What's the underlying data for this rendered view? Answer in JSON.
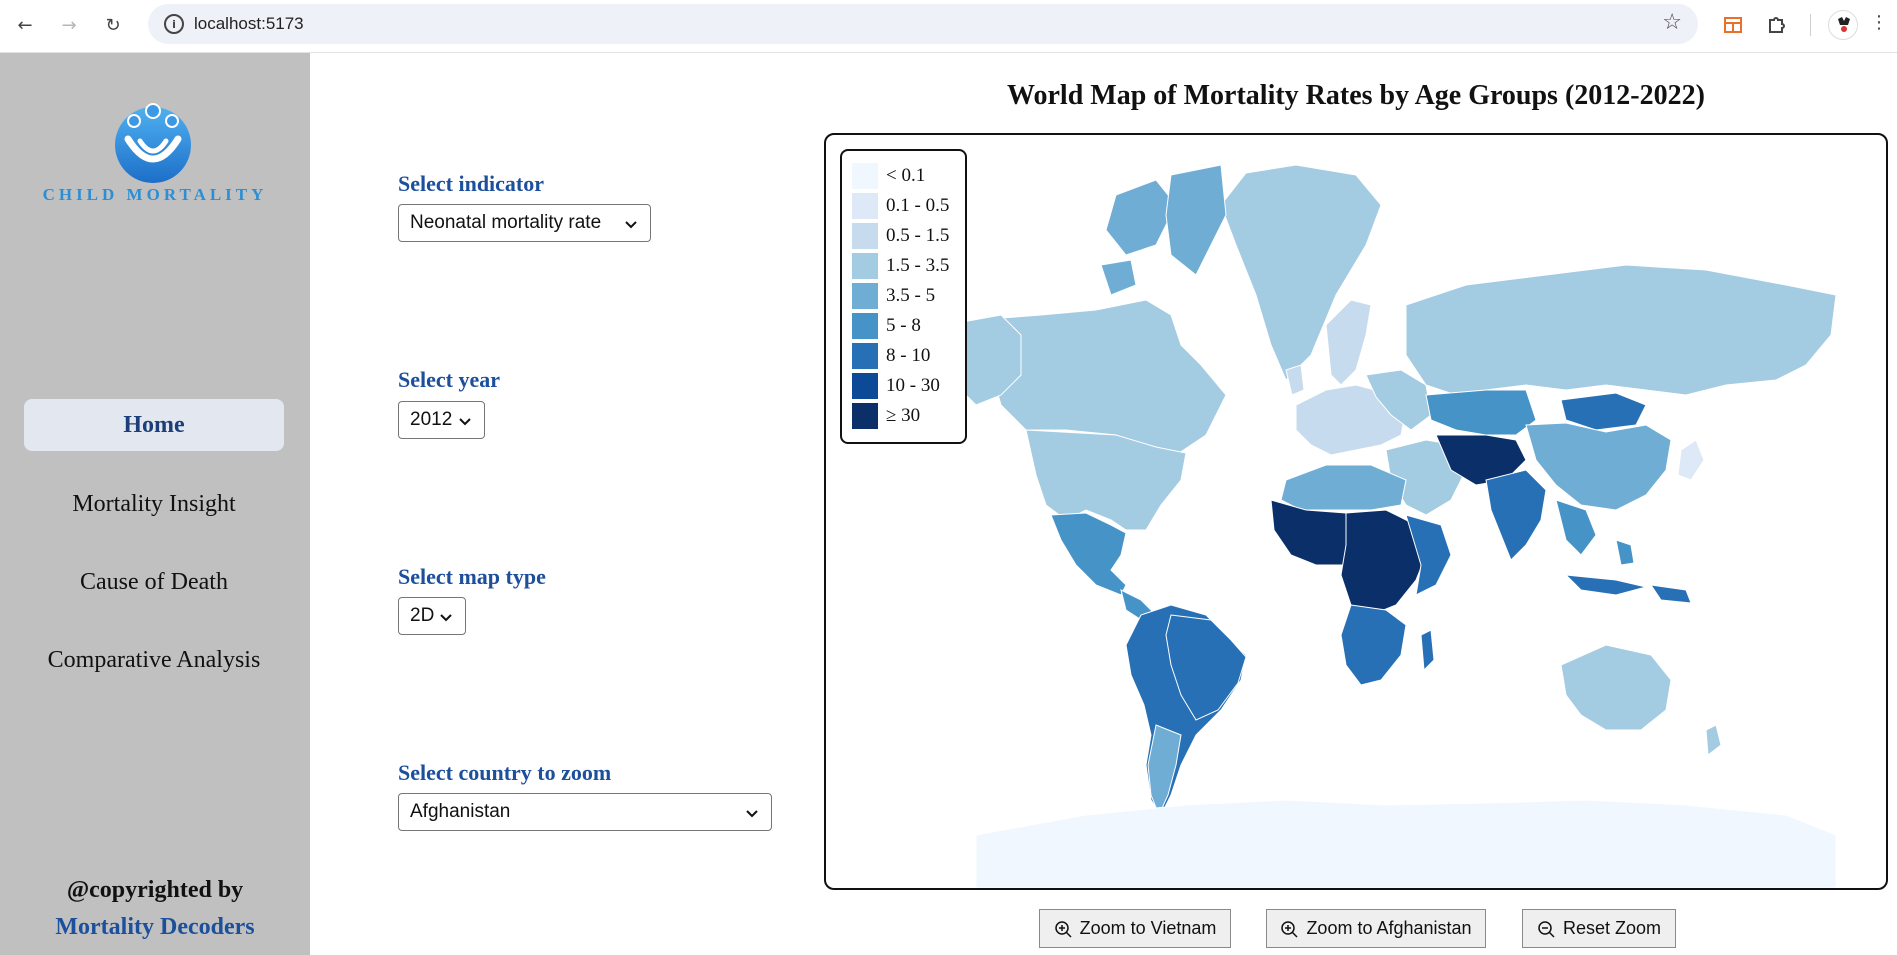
{
  "browser": {
    "url": "localhost:5173",
    "icons": [
      "back-icon",
      "forward-icon",
      "reload-icon",
      "site-info-icon",
      "bookmark-star-icon",
      "extension-icon",
      "puzzle-icon",
      "profile-avatar",
      "menu-icon"
    ]
  },
  "sidebar": {
    "brand": "CHILD MORTALITY",
    "nav": [
      {
        "label": "Home",
        "active": true
      },
      {
        "label": "Mortality Insight",
        "active": false
      },
      {
        "label": "Cause of Death",
        "active": false
      },
      {
        "label": "Comparative Analysis",
        "active": false
      }
    ],
    "footer_line1": "@copyrighted by",
    "footer_line2": "Mortality Decoders"
  },
  "controls": {
    "indicator": {
      "label": "Select indicator",
      "value": "Neonatal mortality rate"
    },
    "year": {
      "label": "Select year",
      "value": "2012"
    },
    "map_type": {
      "label": "Select map type",
      "value": "2D"
    },
    "country": {
      "label": "Select country to zoom",
      "value": "Afghanistan"
    }
  },
  "map": {
    "title": "World Map of Mortality Rates by Age Groups (2012-2022)",
    "legend": [
      {
        "label": "< 0.1",
        "color": "#f1f7fe"
      },
      {
        "label": "0.1 - 0.5",
        "color": "#dde9f6"
      },
      {
        "label": "0.5 - 1.5",
        "color": "#c7dbef"
      },
      {
        "label": "1.5 - 3.5",
        "color": "#a3cbe2"
      },
      {
        "label": "3.5 - 5",
        "color": "#6fadd5"
      },
      {
        "label": "5 - 8",
        "color": "#4693c8"
      },
      {
        "label": "8 - 10",
        "color": "#2770b5"
      },
      {
        "label": "10 - 30",
        "color": "#0c4a98"
      },
      {
        "label": "≥ 30",
        "color": "#0b2f68"
      }
    ]
  },
  "zoom_buttons": {
    "vietnam": "Zoom to Vietnam",
    "afghanistan": "Zoom to Afghanistan",
    "reset": "Reset Zoom"
  }
}
